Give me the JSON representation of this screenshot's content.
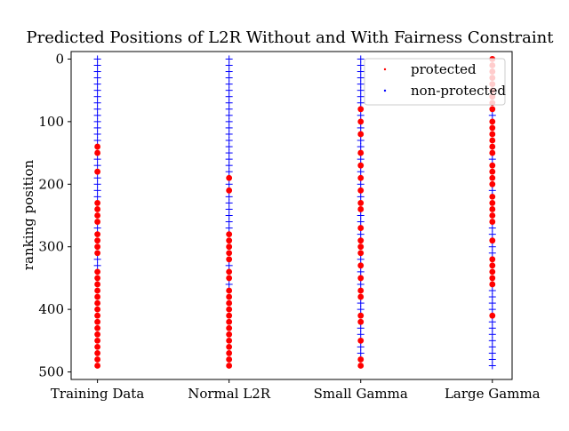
{
  "chart_data": {
    "type": "scatter",
    "title": "Predicted Positions of L2R Without and With Fairness Constraint",
    "xlabel": "",
    "ylabel": "ranking position",
    "ylim": [
      512,
      -12
    ],
    "y_inverted": true,
    "categories": [
      "Training Data",
      "Normal L2R",
      "Small Gamma",
      "Large Gamma"
    ],
    "yticks": [
      0,
      100,
      200,
      300,
      400,
      500
    ],
    "legend_position": "top-right",
    "series": [
      {
        "name": "protected",
        "marker": "dot",
        "color": "#ff0000",
        "positions": [
          [
            140,
            150,
            180,
            230,
            240,
            250,
            260,
            280,
            290,
            300,
            310,
            340,
            350,
            360,
            370,
            380,
            390,
            400,
            410,
            420,
            430,
            440,
            450,
            460,
            470,
            480,
            490
          ],
          [
            190,
            210,
            280,
            290,
            300,
            310,
            320,
            340,
            350,
            370,
            380,
            390,
            400,
            410,
            420,
            430,
            440,
            450,
            460,
            470,
            480,
            490
          ],
          [
            80,
            100,
            120,
            150,
            170,
            190,
            210,
            230,
            240,
            270,
            290,
            300,
            310,
            330,
            350,
            370,
            380,
            410,
            420,
            450,
            480,
            490
          ],
          [
            0,
            10,
            20,
            30,
            40,
            50,
            60,
            70,
            80,
            100,
            110,
            120,
            130,
            140,
            150,
            170,
            180,
            190,
            200,
            220,
            230,
            240,
            250,
            260,
            290,
            320,
            330,
            340,
            350,
            360,
            410
          ]
        ]
      },
      {
        "name": "non-protected",
        "marker": "plus",
        "color": "#0000ff",
        "positions": [
          [
            0,
            10,
            20,
            30,
            40,
            50,
            60,
            70,
            80,
            90,
            100,
            110,
            120,
            130,
            160,
            170,
            190,
            200,
            210,
            220,
            270,
            320,
            330
          ],
          [
            0,
            10,
            20,
            30,
            40,
            50,
            60,
            70,
            80,
            90,
            100,
            110,
            120,
            130,
            140,
            150,
            160,
            170,
            180,
            200,
            220,
            230,
            240,
            250,
            260,
            270,
            330,
            360
          ],
          [
            0,
            10,
            20,
            30,
            40,
            50,
            60,
            70,
            90,
            110,
            130,
            140,
            160,
            180,
            200,
            220,
            250,
            260,
            280,
            320,
            340,
            360,
            390,
            400,
            430,
            440,
            460,
            470
          ],
          [
            90,
            160,
            210,
            270,
            280,
            300,
            310,
            370,
            380,
            390,
            400,
            420,
            430,
            440,
            450,
            460,
            470,
            480,
            490
          ]
        ]
      }
    ]
  }
}
